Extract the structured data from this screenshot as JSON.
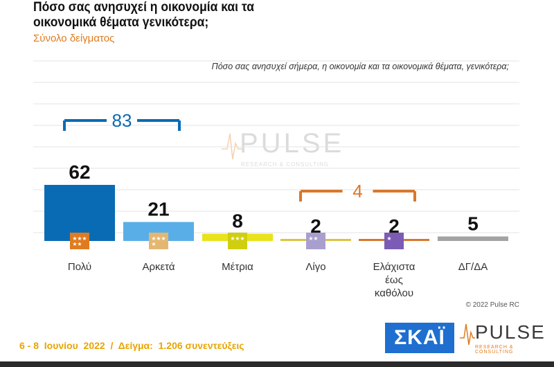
{
  "header": {
    "title_line1": "Πόσο σας ανησυχεί η οικονομία και τα",
    "title_line2": "οικονομικά θέματα γενικότερα;",
    "subtitle": "Σύνολο δείγματος",
    "question": "Πόσο σας ανησυχεί σήμερα, η οικονομία και τα οικονομικά θέματα, γενικότερα;"
  },
  "footer": {
    "date_sample": "6 - 8  Ιουνίου  2022  /  Δείγμα:  1.206 συνεντεύξεις",
    "copyright": "© 2022 Pulse RC",
    "skai_logo": "ΣΚΑΪ",
    "pulse_logo": "PULSE",
    "pulse_tagline": "RESEARCH & CONSULTING"
  },
  "watermark": {
    "word": "PULSE",
    "tagline": "RESEARCH & CONSULTING"
  },
  "chart_data": {
    "type": "bar",
    "categories": [
      "Πολύ",
      "Αρκετά",
      "Μέτρια",
      "Λίγο",
      "Ελάχιστα έως καθόλου",
      "ΔΓ/ΔΑ"
    ],
    "category_lines": [
      [
        "Πολύ"
      ],
      [
        "Αρκετά"
      ],
      [
        "Μέτρια"
      ],
      [
        "Λίγο"
      ],
      [
        "Ελάχιστα",
        "έως",
        "καθόλου"
      ],
      [
        "ΔΓ/ΔΑ"
      ]
    ],
    "values": [
      62,
      21,
      8,
      2,
      2,
      5
    ],
    "colors": [
      "#0a6bb5",
      "#5aaee8",
      "#e8e31b",
      "#dcc440",
      "#d9772b",
      "#a3a3a3"
    ],
    "icon_colors": [
      "#e07b1f",
      "#e4b771",
      "#cfcf10",
      "#a99fce",
      "#7b5bb5",
      null
    ],
    "icon_stars": [
      5,
      4,
      3,
      2,
      1,
      0
    ],
    "brackets": [
      {
        "label": "83",
        "from": 0,
        "to": 1,
        "color": "#0a6bb5"
      },
      {
        "label": "4",
        "from": 3,
        "to": 4,
        "color": "#d9772b"
      }
    ],
    "ylim": [
      0,
      70
    ],
    "grid": true,
    "legend": "none"
  }
}
